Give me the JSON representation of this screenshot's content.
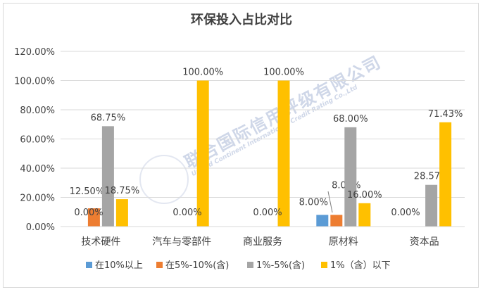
{
  "chart_data": {
    "type": "bar",
    "title": "环保投入占比对比",
    "categories": [
      "技术硬件",
      "汽车与零部件",
      "商业服务",
      "原材料",
      "资本品"
    ],
    "series": [
      {
        "name": "在10%以上",
        "color": "#5b9bd5",
        "values": [
          0,
          0,
          0,
          8.0,
          0
        ],
        "labels": [
          "",
          "",
          "",
          "8.00%",
          ""
        ]
      },
      {
        "name": "在5%-10%(含)",
        "color": "#ed7d31",
        "values": [
          12.5,
          0,
          0,
          8.0,
          0
        ],
        "labels": [
          "12.50%",
          "",
          "",
          "8.00%",
          ""
        ]
      },
      {
        "name": "1%-5%(含)",
        "color": "#a5a5a5",
        "values": [
          68.75,
          0,
          0,
          68.0,
          28.57
        ],
        "labels": [
          "68.75%",
          "",
          "",
          "68.00%",
          "28.57%"
        ]
      },
      {
        "name": "1%（含）以下",
        "color": "#ffc000",
        "values": [
          18.75,
          100.0,
          100.0,
          16.0,
          71.43
        ],
        "labels": [
          "18.75%",
          "100.00%",
          "100.00%",
          "16.00%",
          "71.43%"
        ]
      }
    ],
    "extra_labels": [
      "0.00%",
      "0.00%",
      "0.00%",
      "0.00%"
    ],
    "ylim": [
      0,
      120
    ],
    "ytick_labels": [
      "0.00%",
      "20.00%",
      "40.00%",
      "60.00%",
      "80.00%",
      "100.00%",
      "120.00%"
    ],
    "grid": true,
    "legend_position": "bottom"
  },
  "watermark": {
    "cn": "联合国际信用评级有限公司",
    "en": "United Continent International Credit Rating Co.,Ltd"
  }
}
